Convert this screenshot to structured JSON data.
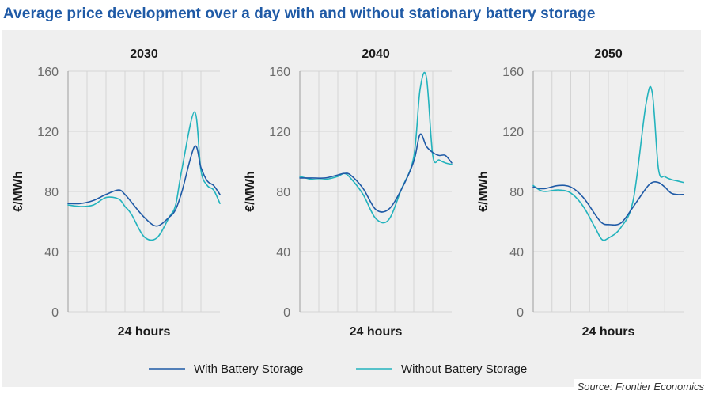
{
  "title": "Average price development over a day with and without stationary battery storage",
  "source": "Source: Frontier Economics",
  "colors": {
    "with_battery": "#1f5aa6",
    "without_battery": "#23b3bd",
    "title": "#1f5aa6"
  },
  "legend": [
    "With Battery Storage",
    "Without Battery Storage"
  ],
  "chart_data": [
    {
      "type": "line",
      "title": "2030",
      "xlabel": "24 hours",
      "ylabel": "€/MWh",
      "ylim": [
        0,
        160
      ],
      "yticks": [
        0,
        40,
        80,
        120,
        160
      ],
      "grid": true,
      "x": [
        0,
        2,
        4,
        6,
        8,
        9,
        10,
        12,
        14,
        16,
        17,
        18,
        20,
        21,
        22,
        23,
        24
      ],
      "series": [
        {
          "name": "With Battery Storage",
          "values": [
            72,
            72,
            74,
            78,
            81,
            78,
            73,
            63,
            57,
            63,
            68,
            80,
            110,
            96,
            87,
            84,
            78
          ]
        },
        {
          "name": "Without Battery Storage",
          "values": [
            71,
            70,
            71,
            76,
            75,
            70,
            65,
            50,
            49,
            63,
            71,
            95,
            133,
            94,
            84,
            81,
            72
          ]
        }
      ]
    },
    {
      "type": "line",
      "title": "2040",
      "xlabel": "24 hours",
      "ylabel": "€/MWh",
      "ylim": [
        0,
        160
      ],
      "yticks": [
        0,
        40,
        80,
        120,
        160
      ],
      "grid": true,
      "x": [
        0,
        2,
        4,
        6,
        7,
        8,
        10,
        12,
        14,
        16,
        18,
        19,
        20,
        21,
        22,
        23,
        24
      ],
      "series": [
        {
          "name": "With Battery Storage",
          "values": [
            89,
            89,
            89,
            91,
            92,
            91,
            82,
            68,
            68,
            81,
            100,
            118,
            110,
            106,
            104,
            104,
            99
          ]
        },
        {
          "name": "Without Battery Storage",
          "values": [
            90,
            88,
            88,
            90,
            92,
            89,
            78,
            62,
            61,
            81,
            103,
            148,
            156,
            104,
            101,
            99,
            98
          ]
        }
      ]
    },
    {
      "type": "line",
      "title": "2050",
      "xlabel": "24 hours",
      "ylabel": "€/MWh",
      "ylim": [
        0,
        160
      ],
      "yticks": [
        0,
        40,
        80,
        120,
        160
      ],
      "grid": true,
      "x": [
        0,
        1,
        2,
        4,
        6,
        8,
        10,
        11,
        12,
        14,
        16,
        18,
        19,
        20,
        21,
        22,
        23,
        24
      ],
      "series": [
        {
          "name": "With Battery Storage",
          "values": [
            83,
            82,
            82,
            84,
            83,
            76,
            64,
            59,
            58,
            59,
            70,
            82,
            86,
            86,
            83,
            79,
            78,
            78
          ]
        },
        {
          "name": "Without Battery Storage",
          "values": [
            84,
            81,
            80,
            81,
            79,
            70,
            55,
            48,
            49,
            56,
            75,
            138,
            146,
            95,
            90,
            88,
            87,
            86
          ]
        }
      ]
    }
  ]
}
